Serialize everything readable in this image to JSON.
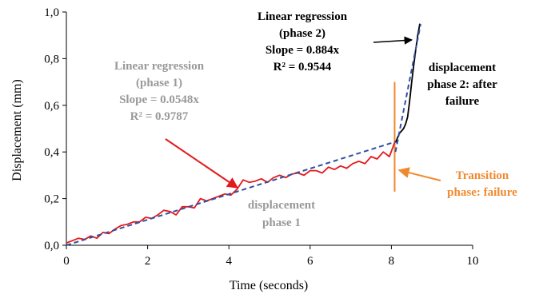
{
  "chart_data": {
    "type": "line",
    "xlabel": "Time (seconds)",
    "ylabel": "Displacement (mm)",
    "xlim": [
      0,
      10
    ],
    "ylim": [
      0,
      1
    ],
    "xticks": [
      "0",
      "2",
      "4",
      "6",
      "8",
      "10"
    ],
    "yticks": [
      "0,0",
      "0,2",
      "0,4",
      "0,6",
      "0,8",
      "1,0"
    ],
    "grid": false,
    "series": [
      {
        "name": "displacement phase 1",
        "color": "#e31a1c",
        "style": "solid",
        "x": [
          0,
          0.15,
          0.3,
          0.45,
          0.6,
          0.75,
          0.9,
          1.05,
          1.2,
          1.35,
          1.5,
          1.65,
          1.8,
          1.95,
          2.1,
          2.25,
          2.4,
          2.55,
          2.7,
          2.85,
          3.0,
          3.15,
          3.3,
          3.45,
          3.6,
          3.75,
          3.9,
          4.05,
          4.2,
          4.35,
          4.5,
          4.65,
          4.8,
          4.95,
          5.1,
          5.25,
          5.4,
          5.55,
          5.7,
          5.85,
          6.0,
          6.15,
          6.3,
          6.45,
          6.6,
          6.75,
          6.9,
          7.05,
          7.2,
          7.35,
          7.5,
          7.65,
          7.8,
          7.95,
          8.08
        ],
        "y": [
          0.01,
          0.02,
          0.03,
          0.025,
          0.04,
          0.03,
          0.055,
          0.05,
          0.07,
          0.085,
          0.09,
          0.1,
          0.1,
          0.12,
          0.115,
          0.13,
          0.15,
          0.145,
          0.13,
          0.165,
          0.165,
          0.16,
          0.2,
          0.19,
          0.2,
          0.21,
          0.22,
          0.215,
          0.24,
          0.28,
          0.27,
          0.275,
          0.285,
          0.27,
          0.29,
          0.3,
          0.29,
          0.305,
          0.31,
          0.3,
          0.32,
          0.32,
          0.31,
          0.335,
          0.325,
          0.34,
          0.33,
          0.35,
          0.36,
          0.35,
          0.38,
          0.37,
          0.4,
          0.38,
          0.44
        ]
      },
      {
        "name": "displacement phase 2: after failure",
        "color": "#000000",
        "style": "solid",
        "x": [
          8.1,
          8.15,
          8.2,
          8.25,
          8.3,
          8.35,
          8.4,
          8.45,
          8.5,
          8.55,
          8.6,
          8.65,
          8.7
        ],
        "y": [
          0.44,
          0.46,
          0.48,
          0.49,
          0.5,
          0.52,
          0.55,
          0.62,
          0.7,
          0.77,
          0.84,
          0.9,
          0.95
        ]
      },
      {
        "name": "Linear regression (phase 1)",
        "color": "#2e4fa3",
        "style": "dashed",
        "x": [
          0,
          8.1
        ],
        "y": [
          0.0,
          0.444
        ]
      },
      {
        "name": "Linear regression (phase 2)",
        "color": "#2e4fa3",
        "style": "dashed",
        "x": [
          8.1,
          8.72
        ],
        "y": [
          0.4,
          0.948
        ]
      }
    ],
    "annotations": [
      {
        "id": "reg1",
        "lines": [
          "Linear regression",
          "(phase 1)",
          "Slope = 0.0548x",
          "R² = 0.9787"
        ],
        "color": "#999999"
      },
      {
        "id": "reg2",
        "lines": [
          "Linear regression",
          "(phase 2)",
          "Slope = 0.884x",
          "R² = 0.9544"
        ],
        "color": "#000000"
      },
      {
        "id": "disp1",
        "lines": [
          "displacement",
          "phase 1"
        ],
        "color": "#999999"
      },
      {
        "id": "disp2",
        "lines": [
          "displacement",
          "phase 2: after",
          "failure"
        ],
        "color": "#000000"
      },
      {
        "id": "trans",
        "lines": [
          "Transition",
          "phase: failure"
        ],
        "color": "#f0892e"
      }
    ],
    "transition_marker": {
      "x": 8.08,
      "y_range": [
        0.23,
        0.7
      ],
      "color": "#f0892e"
    }
  }
}
